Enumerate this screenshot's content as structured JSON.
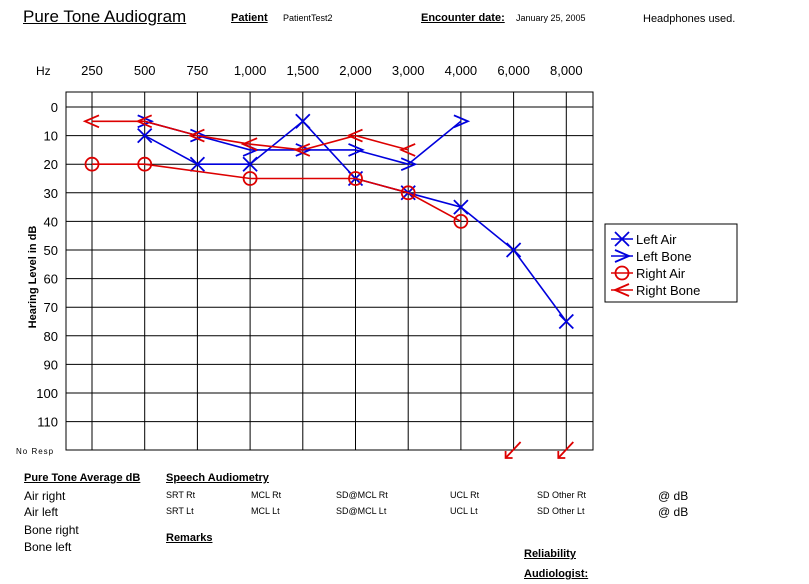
{
  "header": {
    "title": "Pure Tone Audiogram",
    "patient_label": "Patient",
    "patient_value": "PatientTest2",
    "encounter_label": "Encounter date:",
    "encounter_value": "January 25, 2005",
    "note": "Headphones used."
  },
  "chart_data": {
    "type": "line",
    "x_unit_label": "Hz",
    "frequencies": [
      "250",
      "500",
      "750",
      "1,000",
      "1,500",
      "2,000",
      "3,000",
      "4,000",
      "6,000",
      "8,000"
    ],
    "ylabel": "Hearing Level in dB",
    "y_ticks": [
      0,
      10,
      20,
      30,
      40,
      50,
      60,
      70,
      80,
      90,
      100,
      110
    ],
    "ylim": [
      -5,
      120
    ],
    "y_inverted": true,
    "no_response_label": "No Resp",
    "grid": true,
    "legend_position": "right",
    "series": [
      {
        "name": "Left Air",
        "color": "#0000dd",
        "marker": "x",
        "points": [
          {
            "f": "500",
            "db": 10
          },
          {
            "f": "750",
            "db": 20
          },
          {
            "f": "1,000",
            "db": 20
          },
          {
            "f": "1,500",
            "db": 5
          },
          {
            "f": "2,000",
            "db": 25
          },
          {
            "f": "3,000",
            "db": 30
          },
          {
            "f": "4,000",
            "db": 35
          },
          {
            "f": "6,000",
            "db": 50
          },
          {
            "f": "8,000",
            "db": 75
          }
        ]
      },
      {
        "name": "Left Bone",
        "color": "#0000dd",
        "marker": "gt",
        "points": [
          {
            "f": "500",
            "db": 5
          },
          {
            "f": "750",
            "db": 10
          },
          {
            "f": "1,000",
            "db": 15
          },
          {
            "f": "1,500",
            "db": 15
          },
          {
            "f": "2,000",
            "db": 15
          },
          {
            "f": "3,000",
            "db": 20
          },
          {
            "f": "4,000",
            "db": 5
          }
        ]
      },
      {
        "name": "Right Air",
        "color": "#dd0000",
        "marker": "o",
        "points": [
          {
            "f": "250",
            "db": 20
          },
          {
            "f": "500",
            "db": 20
          },
          {
            "f": "1,000",
            "db": 25
          },
          {
            "f": "2,000",
            "db": 25
          },
          {
            "f": "3,000",
            "db": 30
          },
          {
            "f": "4,000",
            "db": 40
          }
        ]
      },
      {
        "name": "Right Bone",
        "color": "#dd0000",
        "marker": "lt",
        "points": [
          {
            "f": "250",
            "db": 5
          },
          {
            "f": "500",
            "db": 5
          },
          {
            "f": "750",
            "db": 10
          },
          {
            "f": "1,000",
            "db": 13
          },
          {
            "f": "1,500",
            "db": 15
          },
          {
            "f": "2,000",
            "db": 10
          },
          {
            "f": "3,000",
            "db": 15
          }
        ]
      }
    ],
    "no_response_marks": [
      {
        "f": "6,000",
        "color": "#dd0000"
      },
      {
        "f": "8,000",
        "color": "#dd0000"
      }
    ]
  },
  "pta": {
    "heading": "Pure Tone Average dB",
    "rows": [
      "Air right",
      "Air left",
      "Bone right",
      "Bone left"
    ]
  },
  "speech": {
    "heading": "Speech Audiometry",
    "rt": [
      "SRT Rt",
      "MCL Rt",
      "SD@MCL Rt",
      "UCL Rt",
      "SD Other Rt",
      "@ dB"
    ],
    "lt": [
      "SRT Lt",
      "MCL Lt",
      "SD@MCL Lt",
      "UCL Lt",
      "SD Other Lt",
      "@ dB"
    ]
  },
  "remarks_label": "Remarks",
  "reliability_label": "Reliability",
  "audiologist_label": "Audiologist:"
}
